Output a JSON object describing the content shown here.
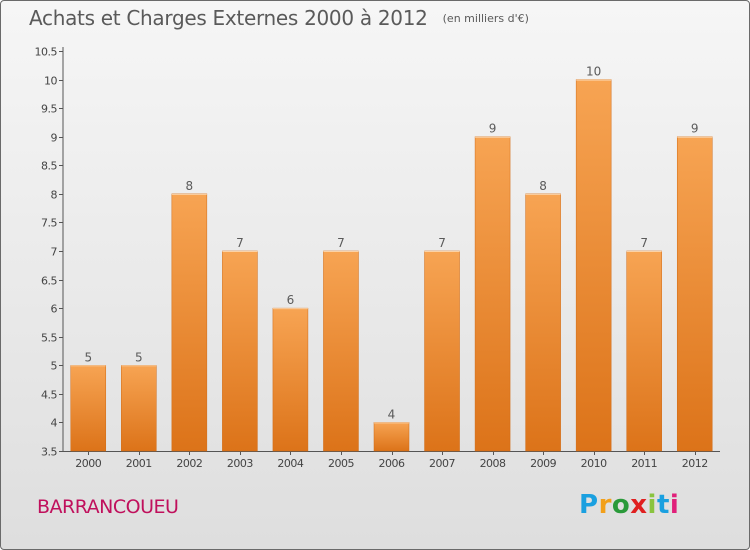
{
  "title": "Achats et Charges Externes 2000 à 2012",
  "unit_label": "(en milliers d'€)",
  "commune": "BARRANCOUEU",
  "brand": {
    "letters": [
      "P",
      "r",
      "o",
      "x",
      "i",
      "t",
      "i"
    ],
    "colors": [
      "#1aa0e0",
      "#f2a01a",
      "#2a9a3a",
      "#e02020",
      "#8ac43f",
      "#1aa0e0",
      "#e0207a"
    ]
  },
  "colors": {
    "bar_light": "#f7a453",
    "bar_dark": "#dc7319",
    "axis": "#555555",
    "text": "#5a5a5a",
    "commune": "#c0105c"
  },
  "chart_data": {
    "type": "bar",
    "categories": [
      "2000",
      "2001",
      "2002",
      "2003",
      "2004",
      "2005",
      "2006",
      "2007",
      "2008",
      "2009",
      "2010",
      "2011",
      "2012"
    ],
    "values": [
      5,
      5,
      8,
      7,
      6,
      7,
      4,
      7,
      9,
      8,
      10,
      7,
      9
    ],
    "data_labels": [
      "5",
      "5",
      "8",
      "7",
      "6",
      "7",
      "4",
      "7",
      "9",
      "8",
      "10",
      "7",
      "9"
    ],
    "title": "Achats et Charges Externes 2000 à 2012",
    "xlabel": "",
    "ylabel": "",
    "ylim": [
      3.5,
      10.5
    ],
    "yticks": [
      3.5,
      4,
      4.5,
      5,
      5.5,
      6,
      6.5,
      7,
      7.5,
      8,
      8.5,
      9,
      9.5,
      10,
      10.5
    ],
    "ytick_labels": [
      "3.5",
      "4",
      "4.5",
      "5",
      "5.5",
      "6",
      "6.5",
      "7",
      "7.5",
      "8",
      "8.5",
      "9",
      "9.5",
      "10",
      "10.5"
    ],
    "grid": false,
    "legend": "none"
  }
}
